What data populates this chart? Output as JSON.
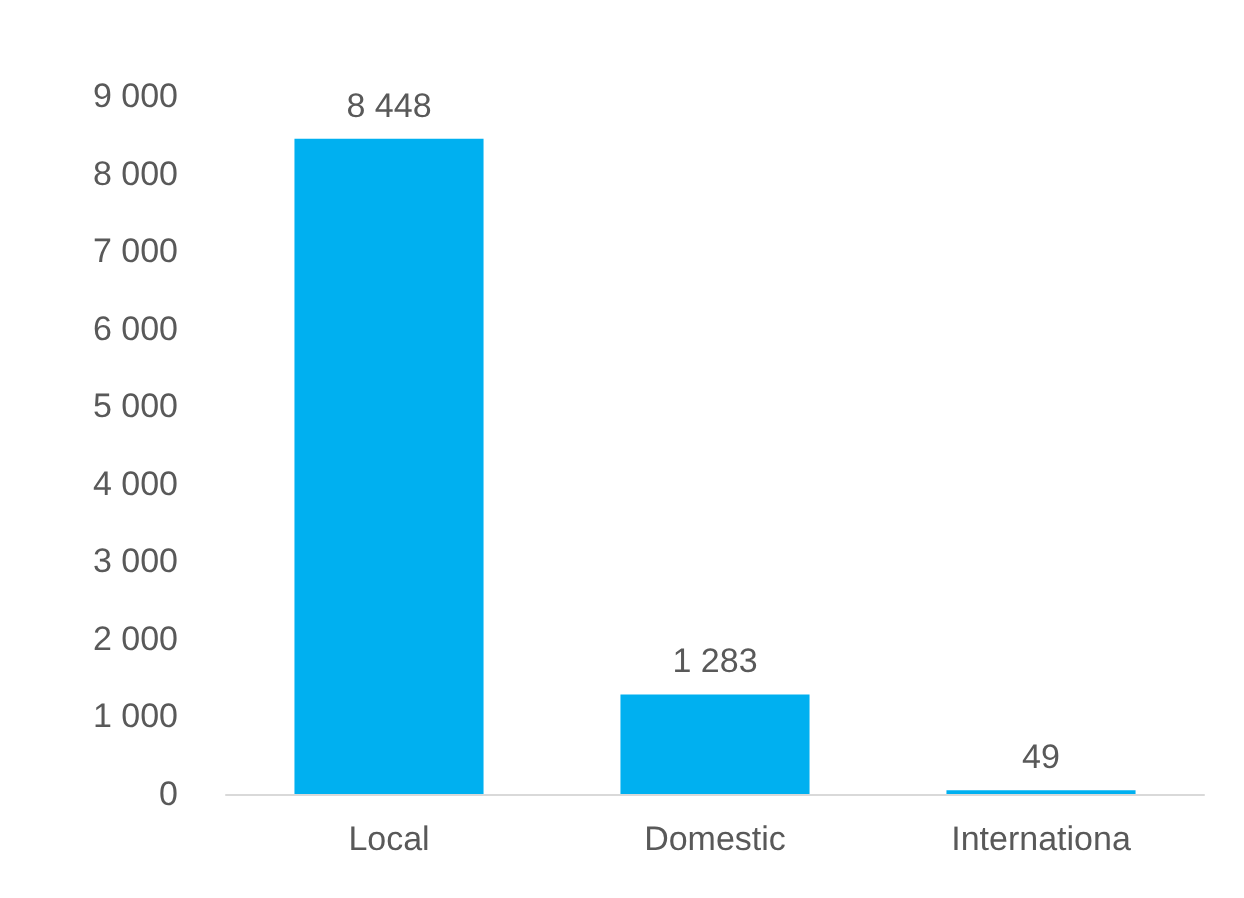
{
  "chart_data": {
    "type": "bar",
    "categories": [
      "Local",
      "Domestic",
      "Internationa"
    ],
    "values": [
      8448,
      1283,
      49
    ],
    "color": "#00b0f0",
    "value_labels": [
      "8 448",
      "1 283",
      "49"
    ],
    "ylim": [
      0,
      9000
    ],
    "yticks": [
      {
        "value": 0,
        "label": "0"
      },
      {
        "value": 1000,
        "label": "1 000"
      },
      {
        "value": 2000,
        "label": "2 000"
      },
      {
        "value": 3000,
        "label": "3 000"
      },
      {
        "value": 4000,
        "label": "4 000"
      },
      {
        "value": 5000,
        "label": "5 000"
      },
      {
        "value": 6000,
        "label": "6 000"
      },
      {
        "value": 7000,
        "label": "7 000"
      },
      {
        "value": 8000,
        "label": "8 000"
      },
      {
        "value": 9000,
        "label": "9 000"
      }
    ],
    "grid": false
  }
}
